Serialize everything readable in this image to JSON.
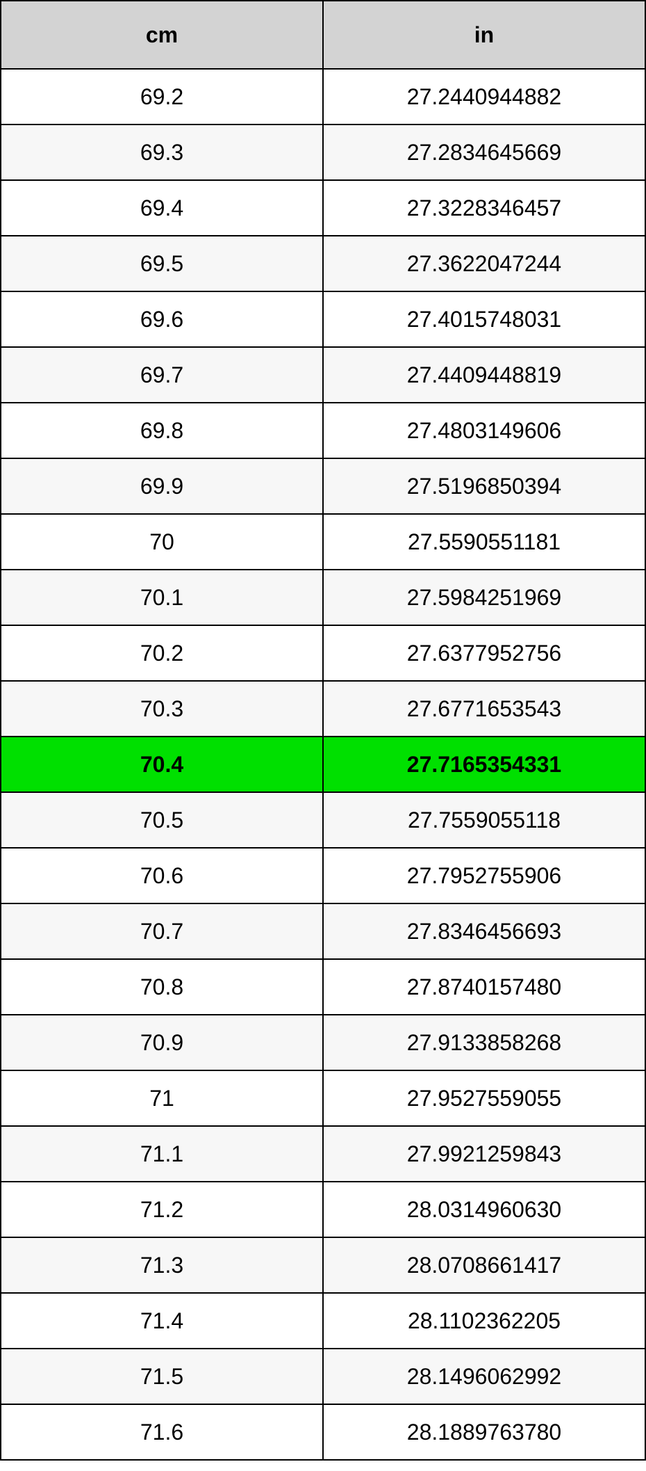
{
  "table": {
    "type": "table",
    "columns": [
      "cm",
      "in"
    ],
    "header_background": "#d3d3d3",
    "header_fontsize": 32,
    "header_fontweight": "bold",
    "cell_fontsize": 32,
    "border_color": "#000000",
    "row_bg_odd": "#ffffff",
    "row_bg_even": "#f7f7f7",
    "highlight_bg": "#00e000",
    "column_widths_pct": [
      50,
      50
    ],
    "highlight_row_index": 12,
    "rows": [
      [
        "69.2",
        "27.2440944882"
      ],
      [
        "69.3",
        "27.2834645669"
      ],
      [
        "69.4",
        "27.3228346457"
      ],
      [
        "69.5",
        "27.3622047244"
      ],
      [
        "69.6",
        "27.4015748031"
      ],
      [
        "69.7",
        "27.4409448819"
      ],
      [
        "69.8",
        "27.4803149606"
      ],
      [
        "69.9",
        "27.5196850394"
      ],
      [
        "70",
        "27.5590551181"
      ],
      [
        "70.1",
        "27.5984251969"
      ],
      [
        "70.2",
        "27.6377952756"
      ],
      [
        "70.3",
        "27.6771653543"
      ],
      [
        "70.4",
        "27.7165354331"
      ],
      [
        "70.5",
        "27.7559055118"
      ],
      [
        "70.6",
        "27.7952755906"
      ],
      [
        "70.7",
        "27.8346456693"
      ],
      [
        "70.8",
        "27.8740157480"
      ],
      [
        "70.9",
        "27.9133858268"
      ],
      [
        "71",
        "27.9527559055"
      ],
      [
        "71.1",
        "27.9921259843"
      ],
      [
        "71.2",
        "28.0314960630"
      ],
      [
        "71.3",
        "28.0708661417"
      ],
      [
        "71.4",
        "28.1102362205"
      ],
      [
        "71.5",
        "28.1496062992"
      ],
      [
        "71.6",
        "28.1889763780"
      ]
    ]
  }
}
